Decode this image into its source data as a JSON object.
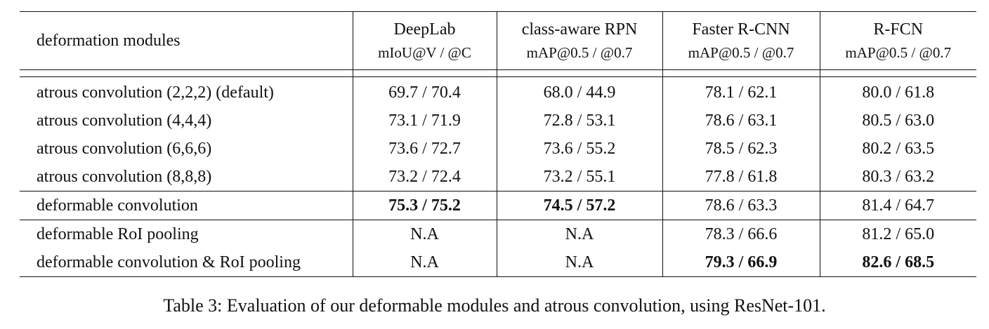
{
  "table": {
    "header": {
      "row_label": "deformation modules",
      "columns": [
        {
          "name": "DeepLab",
          "metric": "mIoU@V / @C"
        },
        {
          "name": "class-aware RPN",
          "metric": "mAP@0.5 / @0.7"
        },
        {
          "name": "Faster R-CNN",
          "metric": "mAP@0.5 / @0.7"
        },
        {
          "name": "R-FCN",
          "metric": "mAP@0.5 / @0.7"
        }
      ]
    },
    "rows": [
      {
        "label": "atrous convolution (2,2,2) (default)",
        "values": [
          "69.7 / 70.4",
          "68.0 / 44.9",
          "78.1 / 62.1",
          "80.0 / 61.8"
        ]
      },
      {
        "label": "atrous convolution (4,4,4)",
        "values": [
          "73.1 / 71.9",
          "72.8 / 53.1",
          "78.6 / 63.1",
          "80.5 / 63.0"
        ]
      },
      {
        "label": "atrous convolution (6,6,6)",
        "values": [
          "73.6 / 72.7",
          "73.6 / 55.2",
          "78.5 / 62.3",
          "80.2 / 63.5"
        ]
      },
      {
        "label": "atrous convolution (8,8,8)",
        "values": [
          "73.2 / 72.4",
          "73.2 / 55.1",
          "77.8 / 61.8",
          "80.3 / 63.2"
        ]
      },
      {
        "label": "deformable convolution",
        "values": [
          "75.3 / 75.2",
          "74.5 / 57.2",
          "78.6 / 63.3",
          "81.4 / 64.7"
        ]
      },
      {
        "label": "deformable RoI pooling",
        "values": [
          "N.A",
          "N.A",
          "78.3 / 66.6",
          "81.2 / 65.0"
        ]
      },
      {
        "label": "deformable convolution & RoI pooling",
        "values": [
          "N.A",
          "N.A",
          "79.3 / 66.9",
          "82.6 / 68.5"
        ]
      }
    ]
  },
  "caption": "Table 3: Evaluation of our deformable modules and atrous convolution, using ResNet-101."
}
